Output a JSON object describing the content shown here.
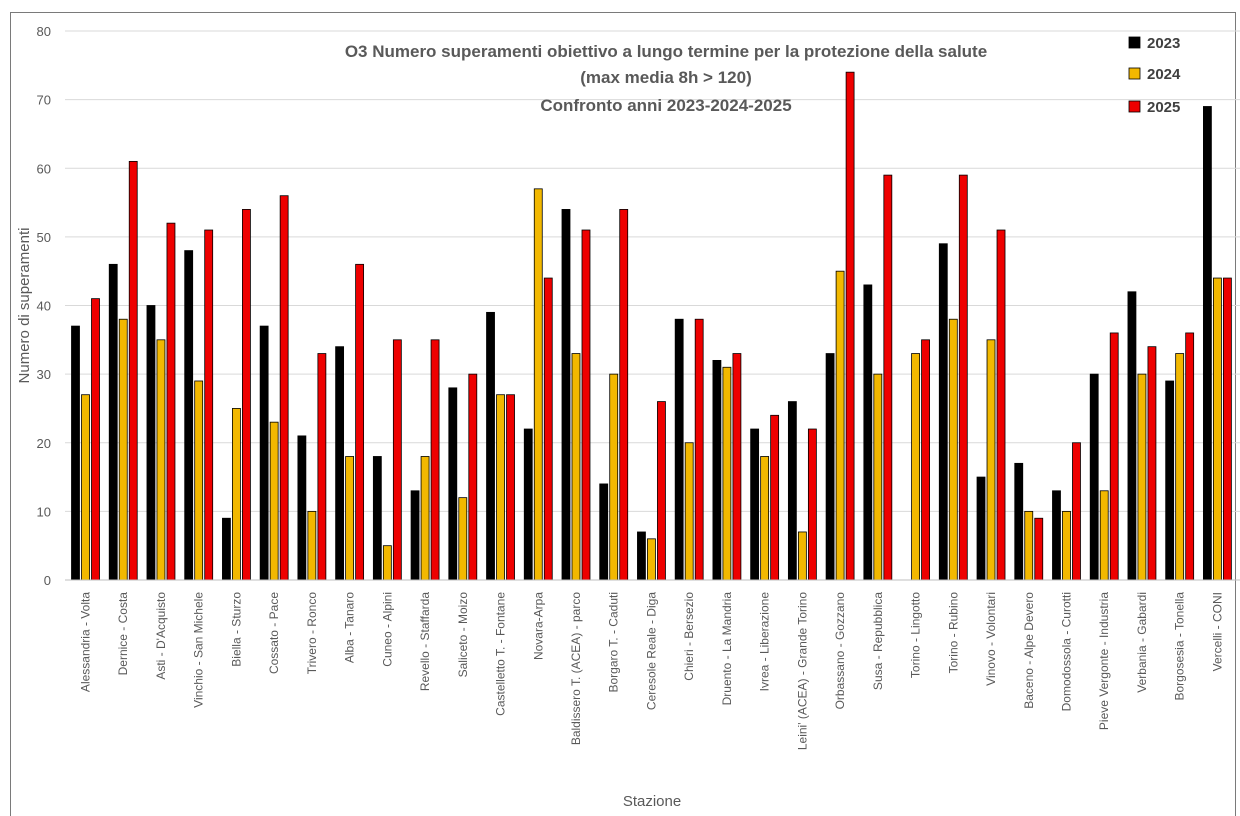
{
  "chart_data": {
    "type": "bar",
    "title": [
      "O3 Numero superamenti  obiettivo a lungo termine per la protezione della salute",
      "(max media 8h > 120)",
      "Confronto anni 2023-2024-2025"
    ],
    "xlabel": "Stazione",
    "ylabel": "Numero di superamenti",
    "ylim": [
      0,
      80
    ],
    "yticks": [
      0,
      10,
      20,
      30,
      40,
      50,
      60,
      70,
      80
    ],
    "grid": true,
    "legend_position": "top-right",
    "categories": [
      "Alessandria - Volta",
      "Dernice - Costa",
      "Asti - D'Acquisto",
      "Vinchio - San Michele",
      "Biella - Sturzo",
      "Cossato - Pace",
      "Trivero - Ronco",
      "Alba - Tanaro",
      "Cuneo - Alpini",
      "Revello - Staffarda",
      "Saliceto - Moizo",
      "Castelletto T. - Fontane",
      "Novara-Arpa",
      "Baldissero T. (ACEA) - parco",
      "Borgaro T. - Caduti",
      "Ceresole Reale - Diga",
      "Chieri - Bersezio",
      "Druento - La Mandria",
      "Ivrea - Liberazione",
      "Leini' (ACEA) - Grande Torino",
      "Orbassano - Gozzano",
      "Susa - Repubblica",
      "Torino - Lingotto",
      "Torino - Rubino",
      "Vinovo - Volontari",
      "Baceno - Alpe Devero",
      "Domodossola - Curotti",
      "Pieve Vergonte - Industria",
      "Verbania - Gabardi",
      "Borgosesia - Tonella",
      "Vercelli - CONI"
    ],
    "series": [
      {
        "name": "2023",
        "color": "#000000",
        "values": [
          37,
          46,
          40,
          48,
          9,
          37,
          21,
          34,
          18,
          13,
          28,
          39,
          22,
          54,
          14,
          7,
          38,
          32,
          22,
          26,
          33,
          43,
          null,
          49,
          15,
          17,
          13,
          30,
          42,
          29,
          69
        ]
      },
      {
        "name": "2024",
        "color": "#f2b800",
        "values": [
          27,
          38,
          35,
          29,
          25,
          23,
          10,
          18,
          5,
          18,
          12,
          27,
          57,
          33,
          30,
          6,
          20,
          31,
          18,
          7,
          45,
          30,
          33,
          38,
          35,
          10,
          10,
          13,
          30,
          33,
          44
        ]
      },
      {
        "name": "2025",
        "color": "#ee0000",
        "values": [
          41,
          61,
          52,
          51,
          54,
          56,
          33,
          46,
          35,
          35,
          30,
          27,
          44,
          51,
          54,
          26,
          38,
          33,
          24,
          22,
          74,
          59,
          35,
          59,
          51,
          9,
          20,
          36,
          34,
          36,
          44
        ]
      }
    ]
  }
}
